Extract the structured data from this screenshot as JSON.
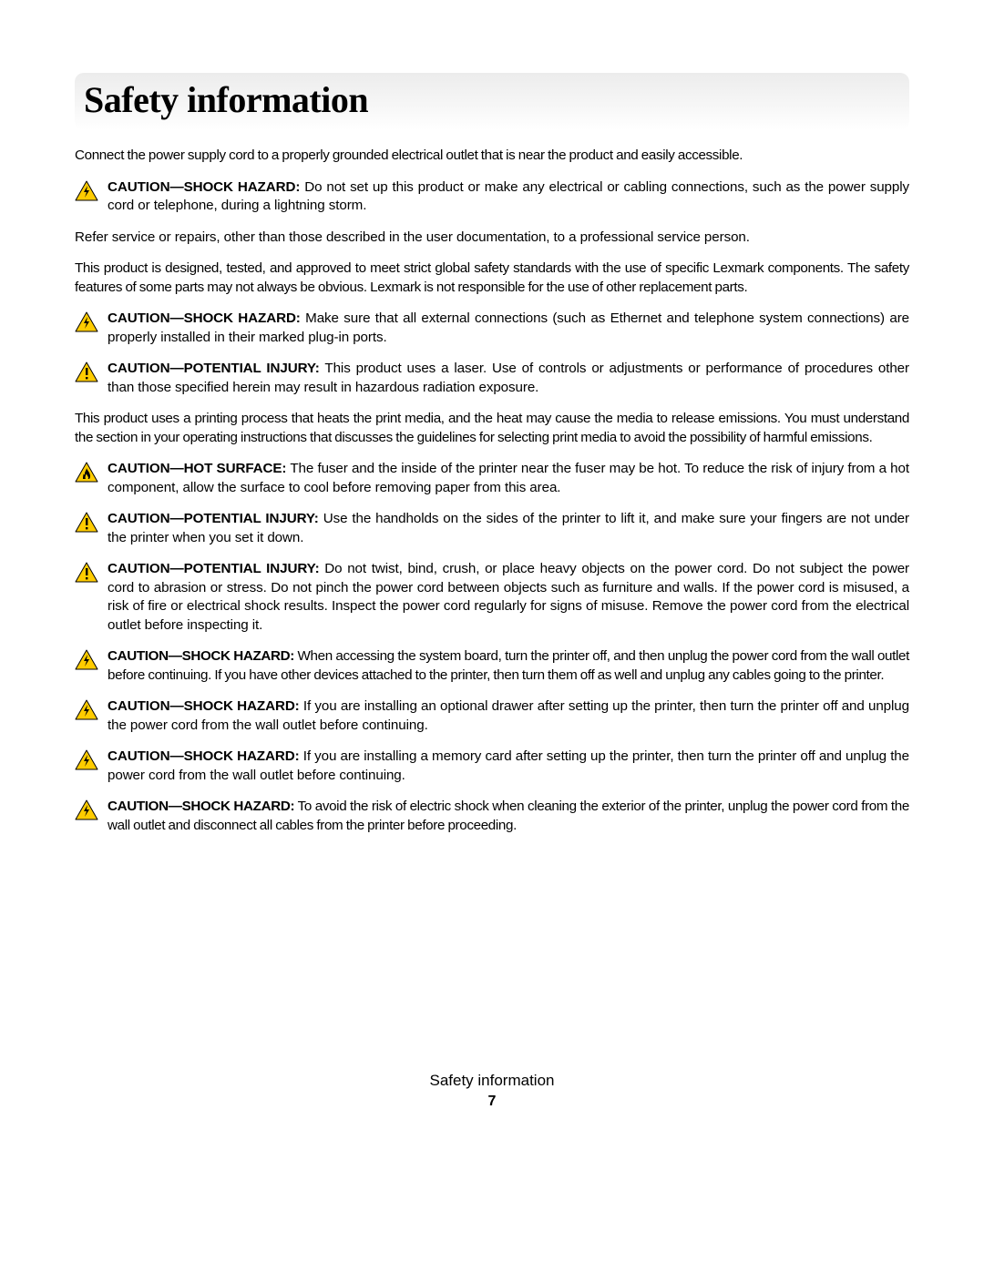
{
  "title": "Safety information",
  "icon_colors": {
    "triangle_fill": "#ffcc00",
    "triangle_stroke": "#000000",
    "symbol": "#000000",
    "hot_inner": "#ffffff"
  },
  "intro_para": "Connect the power supply cord to a properly grounded electrical outlet that is near the product and easily accessible.",
  "cautions": [
    {
      "icon": "shock",
      "label": "CAUTION—SHOCK HAZARD:",
      "text": " Do not set up this product or make any electrical or cabling connections, such as the power supply cord or telephone, during a lightning storm."
    }
  ],
  "para2": "Refer service or repairs, other than those described in the user documentation, to a professional service person.",
  "para3": "This product is designed, tested, and approved to meet strict global safety standards with the use of specific Lexmark components. The safety features of some parts may not always be obvious. Lexmark is not responsible for the use of other replacement parts.",
  "cautions2": [
    {
      "icon": "shock",
      "label": "CAUTION—SHOCK HAZARD:",
      "text": " Make sure that all external connections (such as Ethernet and telephone system connections) are properly installed in their marked plug-in ports."
    },
    {
      "icon": "warn",
      "label": "CAUTION—POTENTIAL INJURY:",
      "text": " This product uses a laser. Use of controls or adjustments or performance of procedures other than those specified herein may result in hazardous radiation exposure."
    }
  ],
  "para4": "This product uses a printing process that heats the print media, and the heat may cause the media to release emissions. You must understand the section in your operating instructions that discusses the guidelines for selecting print media to avoid the possibility of harmful emissions.",
  "cautions3": [
    {
      "icon": "hot",
      "label": "CAUTION—HOT SURFACE:",
      "text": " The fuser and the inside of the printer near the fuser may be hot. To reduce the risk of injury from a hot component, allow the surface to cool before removing paper from this area."
    },
    {
      "icon": "warn",
      "label": "CAUTION—POTENTIAL INJURY:",
      "text": "  Use the handholds on the sides of the printer to lift it, and make sure your fingers are not under the printer when you set it down."
    },
    {
      "icon": "warn",
      "label": "CAUTION—POTENTIAL INJURY:",
      "text": " Do not twist, bind, crush, or place heavy objects on the power cord. Do not subject the power cord to abrasion or stress. Do not pinch the power cord between objects such as furniture and walls. If the power cord is misused, a risk of fire or electrical shock results. Inspect the power cord regularly for signs of misuse. Remove the power cord from the electrical outlet before inspecting it."
    },
    {
      "icon": "shock",
      "label": "CAUTION—SHOCK HAZARD:",
      "text": " When accessing the system board, turn the printer off, and then unplug the power cord from the wall outlet before continuing. If you have other devices attached to the printer, then turn them off as well and unplug any cables going to the printer.",
      "tight": true
    },
    {
      "icon": "shock",
      "label": "CAUTION—SHOCK HAZARD:",
      "text": " If you are installing an optional drawer after setting up the printer, then turn the printer off and unplug the power cord from the wall outlet before continuing."
    },
    {
      "icon": "shock",
      "label": "CAUTION—SHOCK HAZARD:",
      "text": " If you are installing a memory card after setting up the printer, then turn the printer off and unplug the power cord from the wall outlet before continuing."
    },
    {
      "icon": "shock",
      "label": "CAUTION—SHOCK HAZARD:",
      "text": " To avoid the risk of electric shock when cleaning the exterior of the printer, unplug the power cord from the wall outlet and disconnect all cables from the printer before proceeding.",
      "tight": true
    }
  ],
  "footer_title": "Safety information",
  "page_number": "7"
}
